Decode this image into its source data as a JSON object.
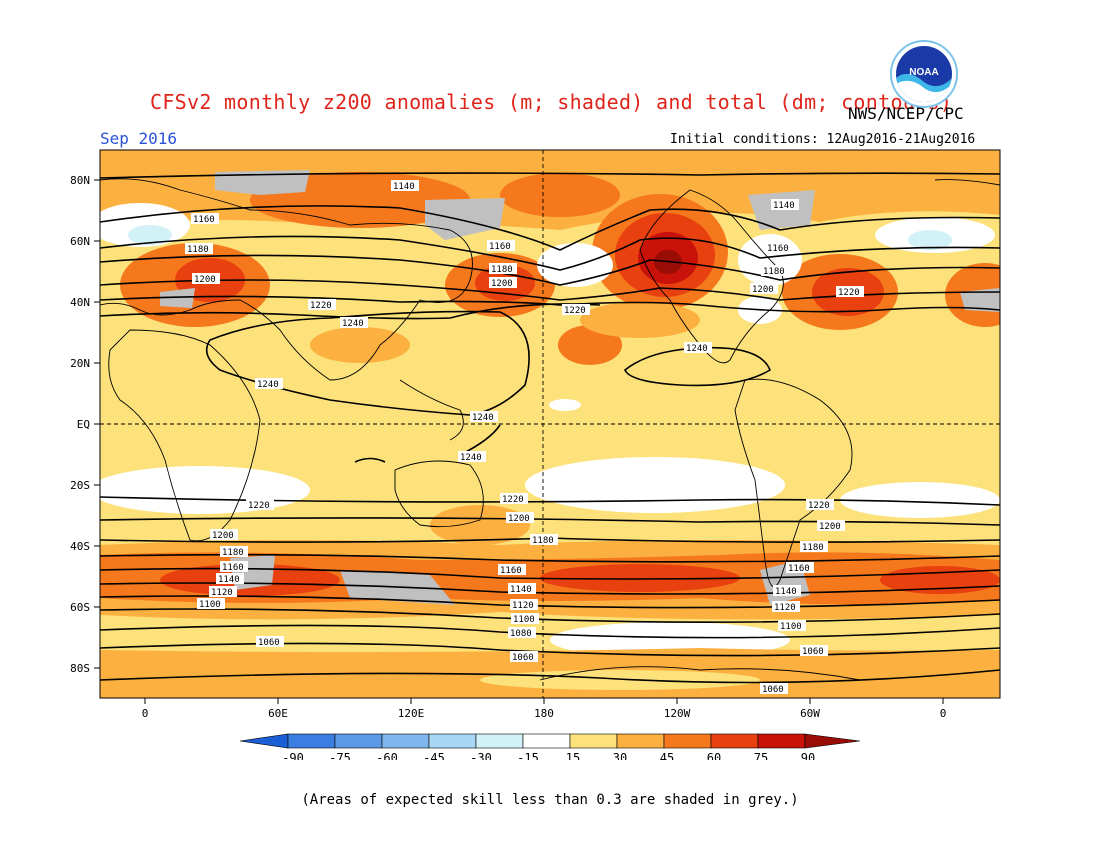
{
  "header": {
    "title": "CFSv2 monthly z200 anomalies (m; shaded) and total (dm; contours)",
    "org": "NWS/NCEP/CPC",
    "month": "Sep 2016",
    "initial_conditions": "Initial conditions: 12Aug2016-21Aug2016"
  },
  "logo": {
    "text": "NOAA"
  },
  "map": {
    "lat_labels": [
      "80N",
      "60N",
      "40N",
      "20N",
      "EQ",
      "20S",
      "40S",
      "60S",
      "80S"
    ],
    "lon_labels": [
      "0",
      "60E",
      "120E",
      "180",
      "120W",
      "60W",
      "0"
    ],
    "contour_labels": [
      "1140",
      "1160",
      "1180",
      "1200",
      "1220",
      "1240",
      "1120",
      "1100",
      "1080",
      "1060"
    ],
    "colors": {
      "background": "#fde17a",
      "skill_mask": "#c0c0c0",
      "contour": "#000000"
    }
  },
  "colorbar": {
    "labels": [
      "-90",
      "-75",
      "-60",
      "-45",
      "-30",
      "-15",
      "15",
      "30",
      "45",
      "60",
      "75",
      "90"
    ],
    "colors": [
      "#1b5fd6",
      "#3a7ee2",
      "#5c9ae8",
      "#7fb6ee",
      "#a8d6f5",
      "#d2f2f8",
      "#ffffff",
      "#fde17a",
      "#fbb040",
      "#f5781d",
      "#e8400e",
      "#c8120a",
      "#9a0c06"
    ]
  },
  "footnote": "(Areas of expected skill less than 0.3 are shaded in grey.)"
}
